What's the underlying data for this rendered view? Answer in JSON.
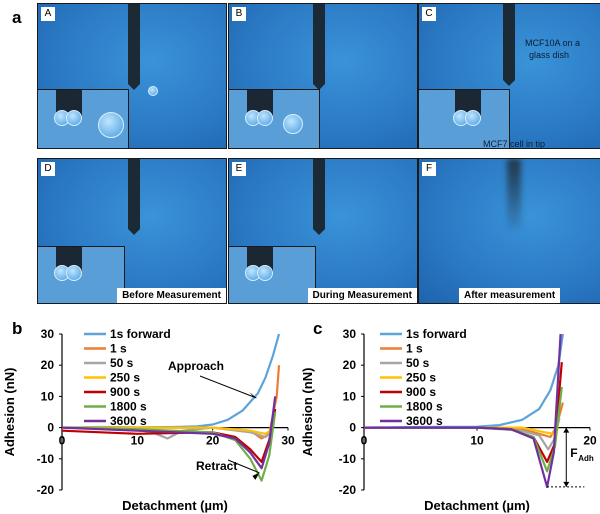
{
  "figure_label": "a",
  "micrographs": [
    {
      "tag": "A"
    },
    {
      "tag": "B"
    },
    {
      "tag": "C",
      "annotations": [
        "MCF10A on a",
        "glass dish",
        "MCF7 cell in tip"
      ]
    },
    {
      "tag": "D",
      "caption": "Before Measurement"
    },
    {
      "tag": "E",
      "caption": "During Measurement"
    },
    {
      "tag": "F",
      "caption": "After measurement"
    }
  ],
  "chart_data": [
    {
      "panel": "b",
      "type": "line",
      "xlabel": "Detachment (µm)",
      "ylabel": "Adhesion (nN)",
      "xlim": [
        0,
        30
      ],
      "ylim": [
        -20,
        30
      ],
      "xticks": [
        "0",
        "10",
        "20",
        "30"
      ],
      "yticks": [
        "30",
        "20",
        "10",
        "0",
        "-10",
        "-20"
      ],
      "annotations": [
        "Approach",
        "Retract"
      ],
      "series": [
        {
          "name": "1s forward",
          "color": "#5ba3d9",
          "x": [
            0,
            5,
            10,
            15,
            18,
            20,
            22,
            24,
            26,
            27,
            28,
            28.8
          ],
          "y": [
            0,
            0.2,
            0.1,
            0.2,
            0.4,
            1.0,
            2.5,
            5.5,
            11,
            16,
            23,
            30
          ]
        },
        {
          "name": "1 s",
          "color": "#ed7d31",
          "x": [
            0,
            10,
            20,
            25,
            26.5,
            27.5,
            28.5,
            28.8
          ],
          "y": [
            0,
            0,
            0,
            -1,
            -3.5,
            -2,
            10,
            20
          ]
        },
        {
          "name": "50 s",
          "color": "#a5a5a5",
          "x": [
            0,
            8,
            12,
            14,
            16,
            20,
            25,
            27,
            28
          ],
          "y": [
            0,
            0,
            -1.5,
            -3.5,
            -1,
            0,
            -1.5,
            -3,
            -1
          ]
        },
        {
          "name": "250 s",
          "color": "#ffc000",
          "x": [
            0,
            10,
            20,
            25,
            27,
            28
          ],
          "y": [
            0,
            0,
            0,
            -1,
            -2,
            -0.5
          ]
        },
        {
          "name": "900 s",
          "color": "#c00000",
          "x": [
            0,
            10,
            20,
            23,
            25,
            26.5,
            27.5,
            28.3
          ],
          "y": [
            -1,
            -2,
            -1.5,
            -3,
            -7,
            -11,
            -4,
            6
          ]
        },
        {
          "name": "1800 s",
          "color": "#70ad47",
          "x": [
            0,
            10,
            20,
            23,
            25,
            26.5,
            27.5,
            28.3
          ],
          "y": [
            0,
            -0.5,
            -1.5,
            -4,
            -10,
            -17,
            -9,
            5
          ]
        },
        {
          "name": "3600 s",
          "color": "#7030a0",
          "x": [
            0,
            10,
            20,
            23,
            25,
            26.5,
            27.5,
            28.3
          ],
          "y": [
            0,
            -1,
            -2,
            -3.5,
            -8,
            -13,
            -5,
            10
          ]
        }
      ]
    },
    {
      "panel": "c",
      "type": "line",
      "xlabel": "Detachment (µm)",
      "ylabel": "Adhesion (nN)",
      "xlim": [
        0,
        20
      ],
      "ylim": [
        -20,
        30
      ],
      "xticks": [
        "0",
        "10",
        "20"
      ],
      "yticks": [
        "30",
        "20",
        "10",
        "0",
        "-10",
        "-20"
      ],
      "annotations": [
        "F",
        "Adh"
      ],
      "series": [
        {
          "name": "1s forward",
          "color": "#5ba3d9",
          "x": [
            0,
            5,
            10,
            12,
            14,
            15.5,
            16.5,
            17.2,
            17.6
          ],
          "y": [
            0,
            0.2,
            0.3,
            0.8,
            2.5,
            6,
            12,
            20,
            30
          ]
        },
        {
          "name": "1 s",
          "color": "#ed7d31",
          "x": [
            0,
            10,
            14,
            15.5,
            16.5,
            17,
            17.6
          ],
          "y": [
            0,
            0,
            -0.5,
            -2,
            -3,
            0,
            8
          ]
        },
        {
          "name": "50 s",
          "color": "#a5a5a5",
          "x": [
            0,
            10,
            14,
            15.5,
            16.3,
            16.8,
            17.3
          ],
          "y": [
            0,
            0,
            -1,
            -2.5,
            -7,
            -4,
            3
          ]
        },
        {
          "name": "250 s",
          "color": "#ffc000",
          "x": [
            0,
            10,
            14,
            16,
            16.8,
            17.2
          ],
          "y": [
            0,
            0,
            0,
            -1.5,
            -2,
            0
          ]
        },
        {
          "name": "900 s",
          "color": "#c00000",
          "x": [
            0,
            10,
            13,
            15,
            16.2,
            16.9,
            17.5
          ],
          "y": [
            0,
            0,
            -0.5,
            -3,
            -11,
            -5,
            21
          ]
        },
        {
          "name": "1800 s",
          "color": "#70ad47",
          "x": [
            0,
            10,
            13,
            15,
            16.2,
            16.9,
            17.5
          ],
          "y": [
            0,
            0,
            -0.5,
            -3,
            -14,
            -6,
            13
          ]
        },
        {
          "name": "3600 s",
          "color": "#7030a0",
          "x": [
            0,
            10,
            13,
            15,
            16.2,
            16.8,
            17.4
          ],
          "y": [
            0,
            0,
            -0.5,
            -3.5,
            -19,
            -8,
            30
          ]
        }
      ]
    }
  ]
}
